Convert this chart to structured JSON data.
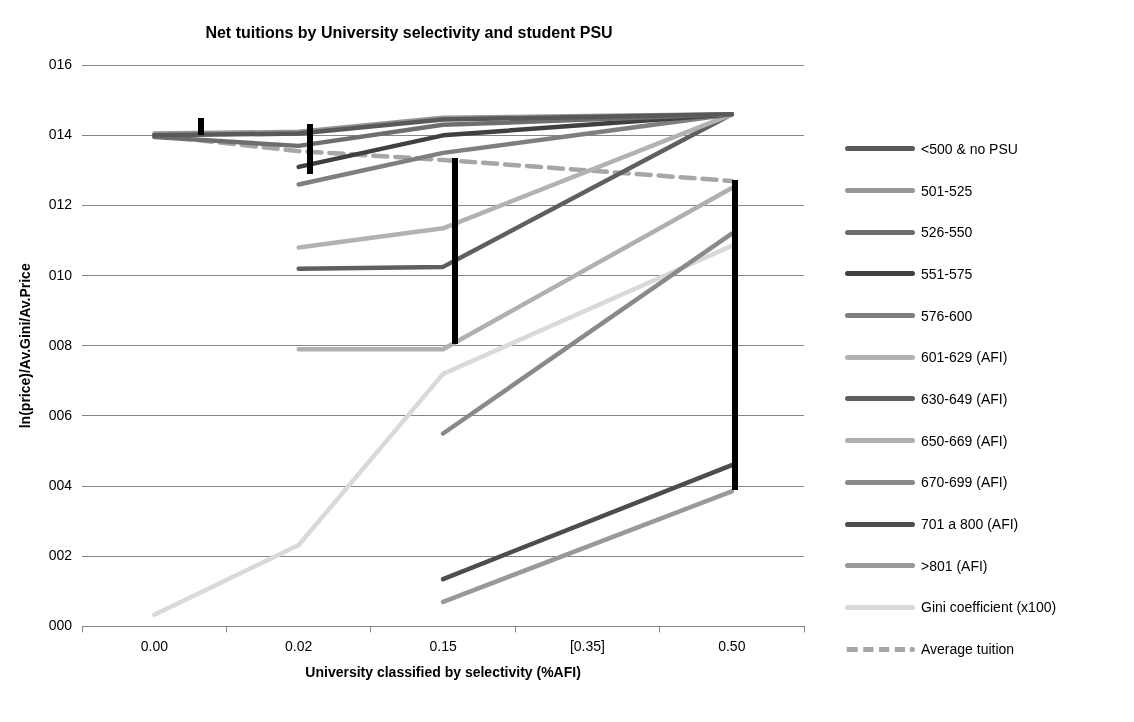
{
  "chart_data": {
    "type": "line",
    "title": "Net tuitions by University selectivity and student PSU",
    "xlabel": "University classified by selectivity (%AFI)",
    "ylabel": "ln(price)/Av.Gini/Av.Price",
    "categories": [
      "0.00",
      "0.02",
      "0.15",
      "[0.35]",
      "0.50"
    ],
    "ylim": [
      0,
      16
    ],
    "yticks": [
      {
        "value": 0,
        "label": "000"
      },
      {
        "value": 2,
        "label": "002"
      },
      {
        "value": 4,
        "label": "004"
      },
      {
        "value": 6,
        "label": "006"
      },
      {
        "value": 8,
        "label": "008"
      },
      {
        "value": 10,
        "label": "010"
      },
      {
        "value": 12,
        "label": "012"
      },
      {
        "value": 14,
        "label": "014"
      },
      {
        "value": 16,
        "label": "016"
      }
    ],
    "grid": "y",
    "legend": "right",
    "marker": "none",
    "series": [
      {
        "name": "<500 & no PSU",
        "color": "#595959",
        "values": [
          14.0,
          14.05,
          14.45,
          null,
          14.6
        ]
      },
      {
        "name": "501-525",
        "color": "#969696",
        "values": [
          14.05,
          14.1,
          14.5,
          null,
          14.6
        ]
      },
      {
        "name": "526-550",
        "color": "#6e6e6e",
        "values": [
          13.95,
          13.7,
          14.3,
          null,
          14.6
        ]
      },
      {
        "name": "551-575",
        "color": "#404040",
        "values": [
          null,
          13.1,
          14.0,
          null,
          14.6
        ]
      },
      {
        "name": "576-600",
        "color": "#7f7f7f",
        "values": [
          null,
          12.6,
          13.5,
          null,
          14.6
        ]
      },
      {
        "name": "601-629 (AFI)",
        "color": "#b2b2b2",
        "values": [
          null,
          10.8,
          11.35,
          null,
          14.6
        ]
      },
      {
        "name": "630-649  (AFI)",
        "color": "#5f5f5f",
        "values": [
          null,
          10.2,
          10.25,
          null,
          14.6
        ]
      },
      {
        "name": "650-669  (AFI)",
        "color": "#b0b0b0",
        "values": [
          null,
          7.9,
          7.9,
          null,
          12.5
        ]
      },
      {
        "name": "670-699  (AFI)",
        "color": "#8a8a8a",
        "values": [
          null,
          null,
          5.5,
          null,
          11.2
        ]
      },
      {
        "name": "701 a 800  (AFI)",
        "color": "#4d4d4d",
        "values": [
          null,
          null,
          1.35,
          null,
          4.6
        ]
      },
      {
        "name": ">801  (AFI)",
        "color": "#999999",
        "values": [
          null,
          null,
          0.7,
          null,
          3.85
        ]
      },
      {
        "name": "Gini coefficient (x100)",
        "color": "#d9d9d9",
        "values": [
          0.33,
          2.32,
          7.2,
          null,
          10.85
        ]
      },
      {
        "name": "Average tuition",
        "color": "#a6a6a6",
        "line_style": "dashed",
        "values": [
          14.0,
          13.55,
          13.3,
          null,
          12.7
        ]
      }
    ]
  }
}
